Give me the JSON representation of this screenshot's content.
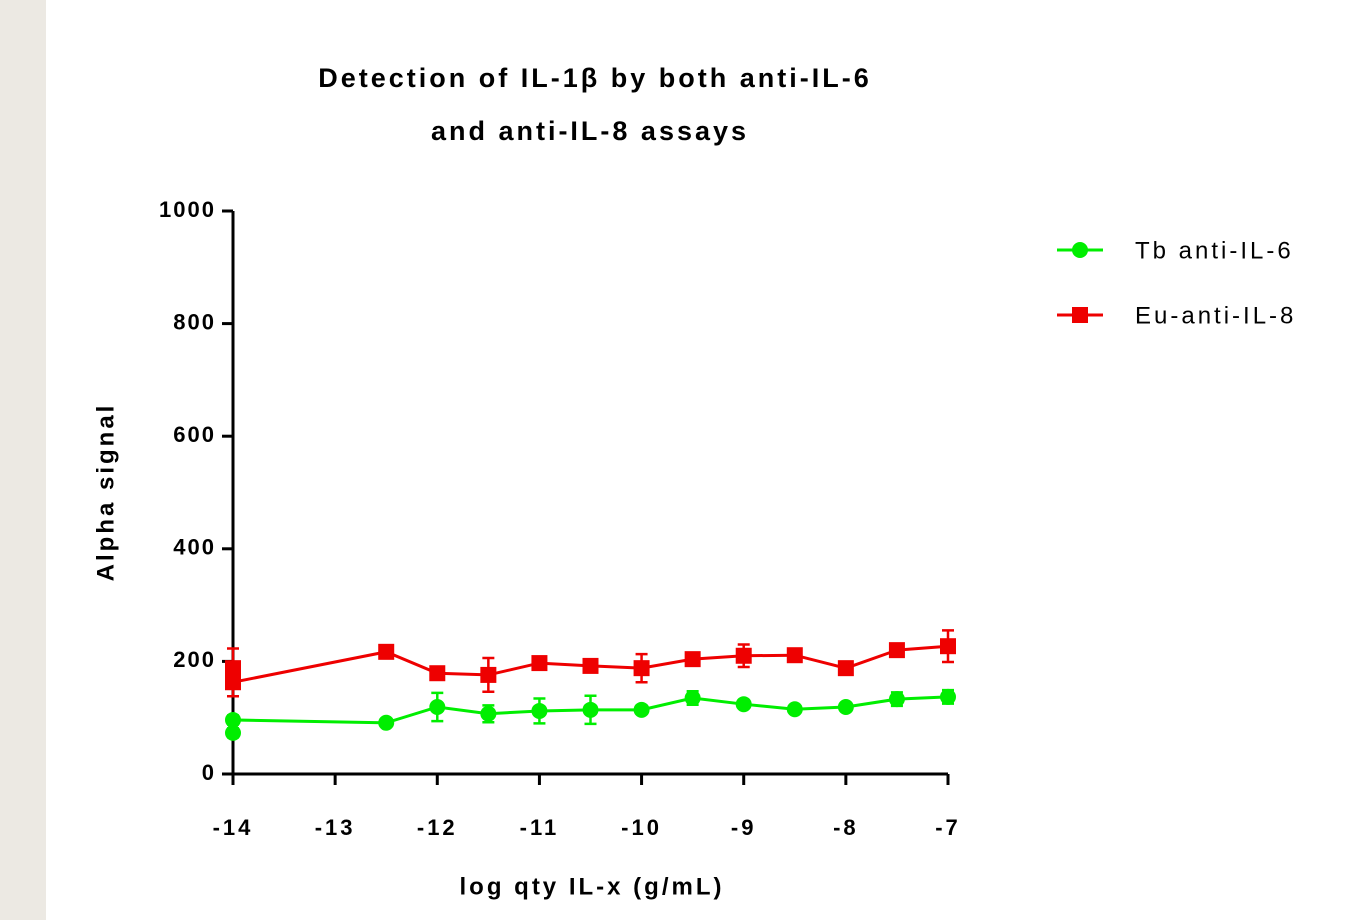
{
  "chart_data": {
    "type": "line",
    "title": [
      "Detection of IL-1β by both anti-IL-6",
      "and anti-IL-8 assays"
    ],
    "x_label": "log qty IL-x (g/mL)",
    "y_label": "Alpha signal",
    "xlim": [
      -14,
      -7
    ],
    "xticks": [
      -14,
      -13,
      -12,
      -11,
      -10,
      -9,
      -8,
      -7
    ],
    "ylim": [
      0,
      1000
    ],
    "yticks": [
      0,
      200,
      400,
      600,
      800,
      1000
    ],
    "series": [
      {
        "name": "Tb anti-IL-6",
        "color": "#00ee00",
        "marker": "circle",
        "x": [
          -14,
          -14,
          -12.5,
          -12,
          -11.5,
          -11,
          -10.5,
          -10,
          -9.5,
          -9,
          -8.5,
          -8,
          -7.5,
          -7
        ],
        "values": [
          73,
          96,
          91,
          119,
          107,
          112,
          114,
          114,
          135,
          124,
          115,
          119,
          133,
          137
        ],
        "errors": [
          8,
          8,
          5,
          25,
          15,
          22,
          25,
          6,
          12,
          6,
          6,
          6,
          12,
          12
        ]
      },
      {
        "name": "Eu-anti-IL-8",
        "color": "#ee0000",
        "marker": "square",
        "x": [
          -14,
          -14,
          -12.5,
          -12,
          -11.5,
          -11,
          -10.5,
          -10,
          -9.5,
          -9,
          -8.5,
          -8,
          -7.5,
          -7
        ],
        "values": [
          188,
          163,
          217,
          179,
          176,
          197,
          192,
          188,
          204,
          210,
          211,
          188,
          220,
          227
        ],
        "errors": [
          35,
          25,
          8,
          10,
          30,
          8,
          8,
          25,
          10,
          20,
          8,
          8,
          8,
          28
        ]
      }
    ]
  }
}
